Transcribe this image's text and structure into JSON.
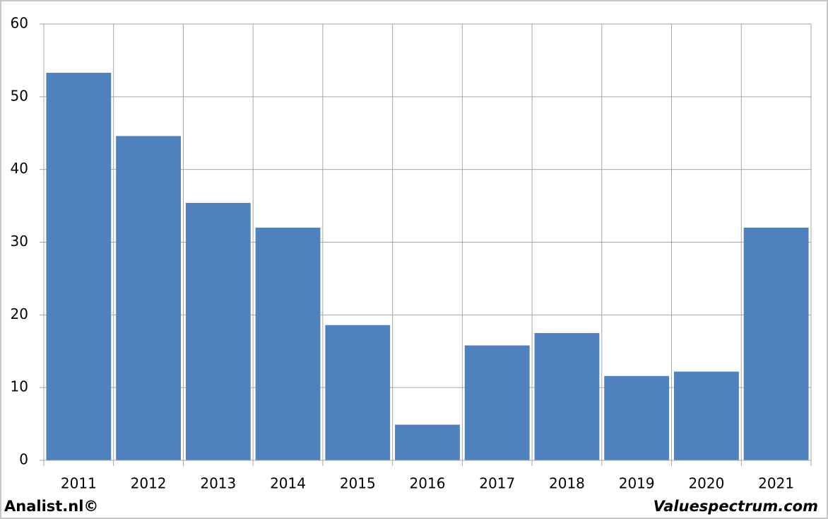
{
  "chart_data": {
    "type": "bar",
    "categories": [
      "2011",
      "2012",
      "2013",
      "2014",
      "2015",
      "2016",
      "2017",
      "2018",
      "2019",
      "2020",
      "2021"
    ],
    "values": [
      53.3,
      44.6,
      35.4,
      32.0,
      18.6,
      4.9,
      15.8,
      17.5,
      11.6,
      12.2,
      32.0
    ],
    "color": "#4f81bd",
    "ylim": [
      0,
      60
    ],
    "yticks": [
      0,
      10,
      20,
      30,
      40,
      50,
      60
    ],
    "grid": true,
    "annotations": [
      "Analist.nl©",
      "Valuespectrum.com"
    ]
  }
}
